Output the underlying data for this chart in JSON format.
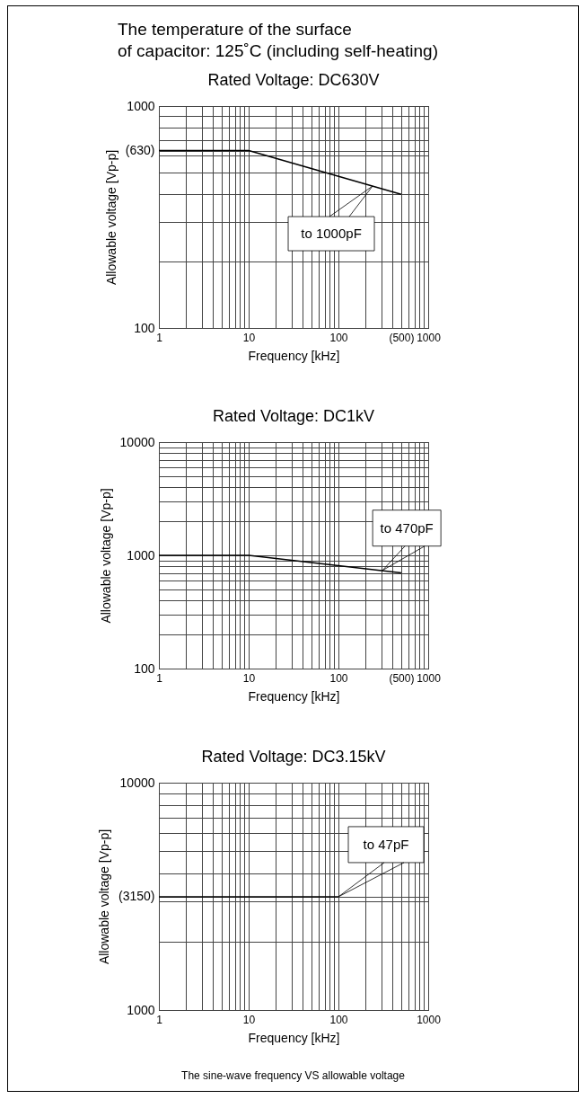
{
  "chart_data": [
    {
      "type": "line",
      "title": "The temperature of the surface\nof capacitor: 125˚C (including self-heating)",
      "subtitle": "Rated Voltage: DC630V",
      "xlabel": "Frequency [kHz]",
      "ylabel": "Allowable voltage [Vp-p]",
      "log": "xy",
      "grid": true,
      "xlim": [
        1,
        1000
      ],
      "ylim": [
        100,
        1000
      ],
      "xticks": [
        1,
        10,
        100,
        {
          "value": 500,
          "label": "(500)"
        },
        1000
      ],
      "yticks": [
        100,
        {
          "value": 630,
          "label": "(630)"
        },
        1000
      ],
      "series": [
        {
          "x": [
            1,
            10,
            500
          ],
          "values": [
            630,
            630,
            400
          ],
          "color": "#000000"
        }
      ],
      "annotations": [
        {
          "text": "to 1000pF",
          "x": 240,
          "y": 436
        }
      ]
    },
    {
      "type": "line",
      "title": "Rated Voltage: DC1kV",
      "xlabel": "Frequency [kHz]",
      "ylabel": "Allowable voltage [Vp-p]",
      "log": "xy",
      "grid": true,
      "xlim": [
        1,
        1000
      ],
      "ylim": [
        100,
        10000
      ],
      "xticks": [
        1,
        10,
        100,
        {
          "value": 500,
          "label": "(500)"
        },
        1000
      ],
      "yticks": [
        100,
        1000,
        10000
      ],
      "series": [
        {
          "x": [
            1,
            10,
            500
          ],
          "values": [
            1000,
            1000,
            700
          ],
          "color": "#000000"
        }
      ],
      "annotations": [
        {
          "text": "to 470pF",
          "x": 310,
          "y": 737
        }
      ]
    },
    {
      "type": "line",
      "title": "Rated Voltage: DC3.15kV",
      "xlabel": "Frequency [kHz]",
      "ylabel": "Allowable voltage [Vp-p]",
      "log": "xy",
      "grid": true,
      "xlim": [
        1,
        1000
      ],
      "ylim": [
        1000,
        10000
      ],
      "xticks": [
        1,
        10,
        100,
        1000
      ],
      "yticks": [
        1000,
        {
          "value": 3150,
          "label": "(3150)"
        },
        10000
      ],
      "series": [
        {
          "x": [
            1,
            100
          ],
          "values": [
            3150,
            3150
          ],
          "color": "#000000"
        }
      ],
      "annotations": [
        {
          "text": "to 47pF",
          "x": 100,
          "y": 3150
        },
        "The sine-wave frequency VS allowable voltage"
      ]
    }
  ]
}
